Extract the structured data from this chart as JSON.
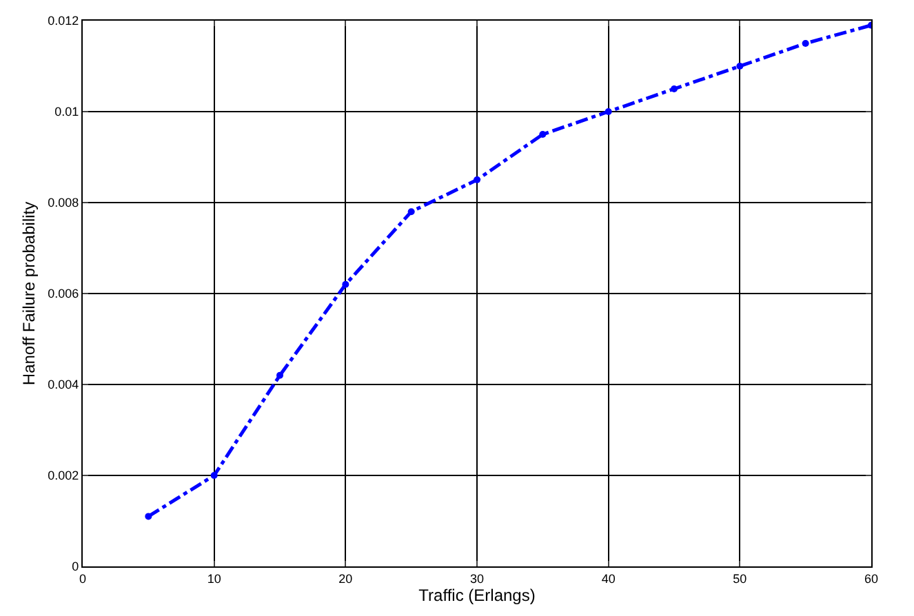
{
  "chart_data": {
    "type": "line",
    "xlabel": "Traffic (Erlangs)",
    "ylabel": "Hanoff Failure probability",
    "x": [
      5,
      10,
      15,
      20,
      25,
      30,
      35,
      40,
      45,
      50,
      55,
      60
    ],
    "series": [
      {
        "color": "#0000ff",
        "values": [
          0.0011,
          0.002,
          0.0042,
          0.0062,
          0.0078,
          0.0085,
          0.0095,
          0.01,
          0.0105,
          0.011,
          0.0115,
          0.0119
        ]
      }
    ],
    "xlim": [
      0,
      60
    ],
    "xticks": [
      0,
      10,
      20,
      30,
      40,
      50,
      60
    ],
    "ylim": [
      0,
      0.012
    ],
    "yticks": [
      0,
      0.002,
      0.004,
      0.006,
      0.008,
      0.01,
      0.012
    ],
    "grid": true,
    "marker": "circle",
    "line_style": "dashed"
  }
}
